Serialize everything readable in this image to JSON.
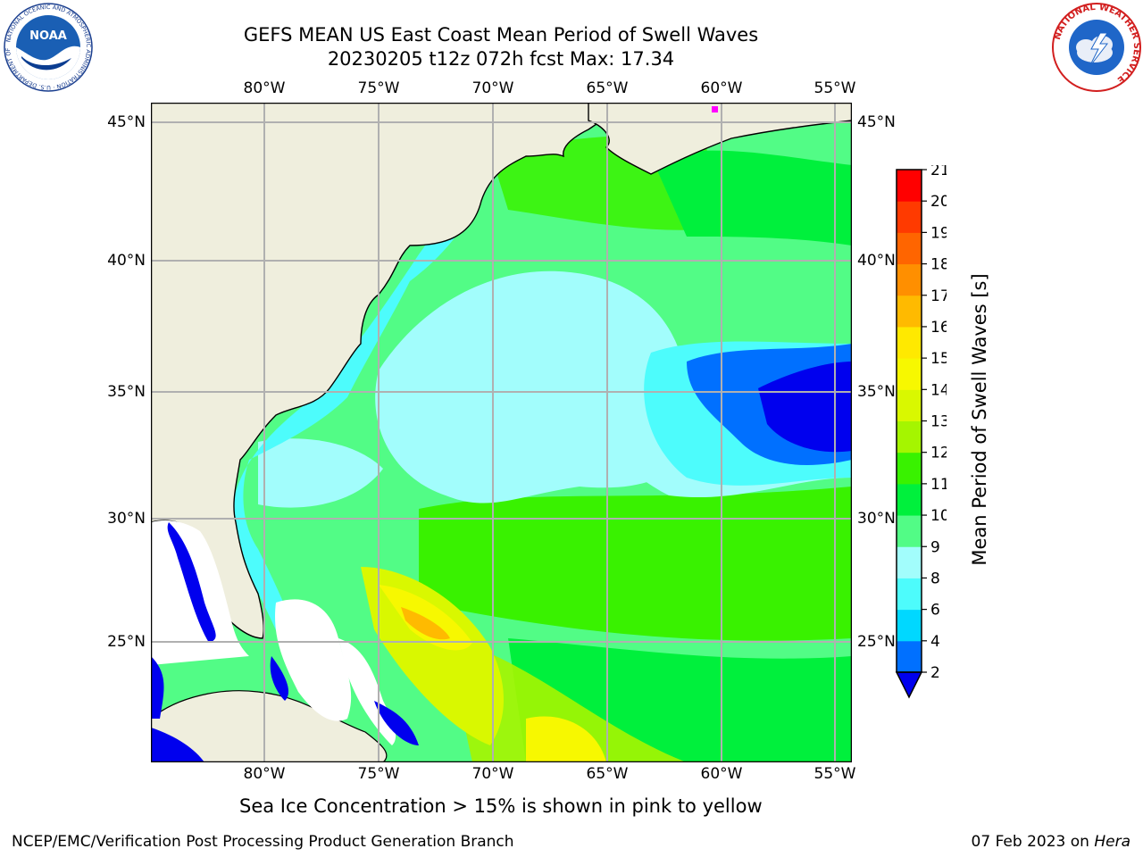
{
  "header": {
    "title_line1": "GEFS MEAN US East Coast Mean Period of Swell Waves",
    "title_line2": "20230205 t12z 072h fcst   Max: 17.34"
  },
  "map": {
    "lon_labels": [
      "80°W",
      "75°W",
      "70°W",
      "65°W",
      "60°W",
      "55°W"
    ],
    "lat_labels": [
      "45°N",
      "40°N",
      "35°N",
      "30°N",
      "25°N"
    ],
    "colors": {
      "land": "#efeedd",
      "sea_ice_pink": "#ff00ff",
      "grid": "#b0b0b0"
    }
  },
  "colorbar": {
    "title": "Mean Period of Swell Waves [s]",
    "ticks": [
      "2",
      "4",
      "6",
      "8",
      "9",
      "10",
      "11",
      "12",
      "13",
      "14",
      "15",
      "16",
      "17",
      "18",
      "19",
      "20",
      "21"
    ],
    "colors": [
      "#0070ff",
      "#00d8ff",
      "#4dfcfc",
      "#a2fdfc",
      "#52fc86",
      "#00f03c",
      "#39f200",
      "#a5f500",
      "#d9f800",
      "#f7f800",
      "#ffe900",
      "#ffba00",
      "#ff8f00",
      "#ff6500",
      "#ff3a00",
      "#ff0000"
    ],
    "below_color": "#0000ee"
  },
  "footer": {
    "note": "Sea Ice Concentration > 15% is shown in pink to yellow",
    "credit": "NCEP/EMC/Verification Post Processing Product Generation Branch",
    "date": "07 Feb 2023 on",
    "machine": "Hera"
  },
  "logos": {
    "noaa": "NOAA",
    "noaa_ring": "NATIONAL OCEANIC AND ATMOSPHERIC ADMINISTRATION · U.S. DEPARTMENT OF COMMERCE",
    "nws_ring": "NATIONAL WEATHER SERVICE"
  }
}
